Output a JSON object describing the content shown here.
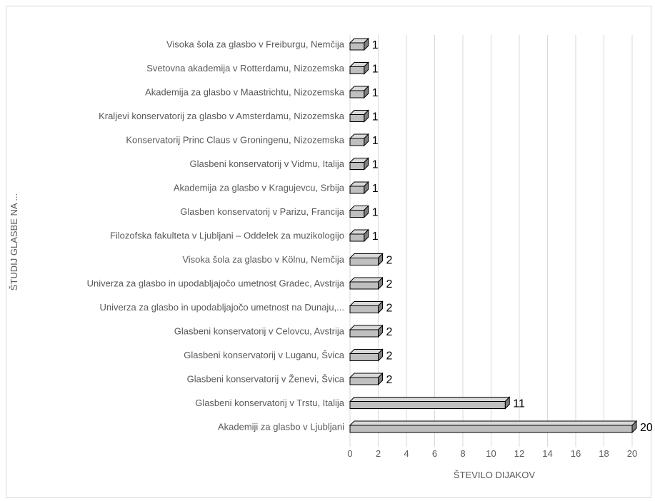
{
  "chart_data": {
    "type": "bar",
    "orientation": "horizontal",
    "style": "3d-bar",
    "categories": [
      "Visoka šola za glasbo v Freiburgu, Nemčija",
      "Svetovna akademija v Rotterdamu, Nizozemska",
      "Akademija za glasbo v Maastrichtu, Nizozemska",
      "Kraljevi konservatorij za glasbo v Amsterdamu, Nizozemska",
      "Konservatorij Princ Claus v Groningenu, Nizozemska",
      "Glasbeni konservatorij v Vidmu, Italija",
      "Akademija za glasbo v Kragujevcu, Srbija",
      "Glasben konservatorij v Parizu, Francija",
      "Filozofska fakulteta v Ljubljani – Oddelek za muzikologijo",
      "Visoka šola za glasbo v Kölnu, Nemčija",
      "Univerza za glasbo in upodabljajočo umetnost Gradec, Avstrija",
      "Univerza za glasbo in upodabljajočo umetnost na Dunaju,...",
      "Glasbeni konservatorij v Celovcu, Avstrija",
      "Glasbeni konservatorij v Luganu, Švica",
      "Glasbeni konservatorij v Ženevi, Švica",
      "Glasbeni konservatorij v Trstu, Italija",
      "Akademiji za glasbo v Ljubljani"
    ],
    "values": [
      1,
      1,
      1,
      1,
      1,
      1,
      1,
      1,
      1,
      2,
      2,
      2,
      2,
      2,
      2,
      11,
      20
    ],
    "xlabel": "ŠTEVILO DIJAKOV",
    "ylabel": "ŠTUDIJ GLASBE NA ...",
    "xlim": [
      0,
      20
    ],
    "xticks": [
      "0",
      "2",
      "4",
      "6",
      "8",
      "10",
      "12",
      "14",
      "16",
      "18",
      "20"
    ],
    "grid": true,
    "data_labels": true,
    "colors": {
      "bar_front": "#bfbfbf",
      "bar_top": "#d9d9d9",
      "bar_side": "#7f7f7f",
      "bar_stroke": "#000000",
      "grid": "#d9d9d9"
    }
  }
}
